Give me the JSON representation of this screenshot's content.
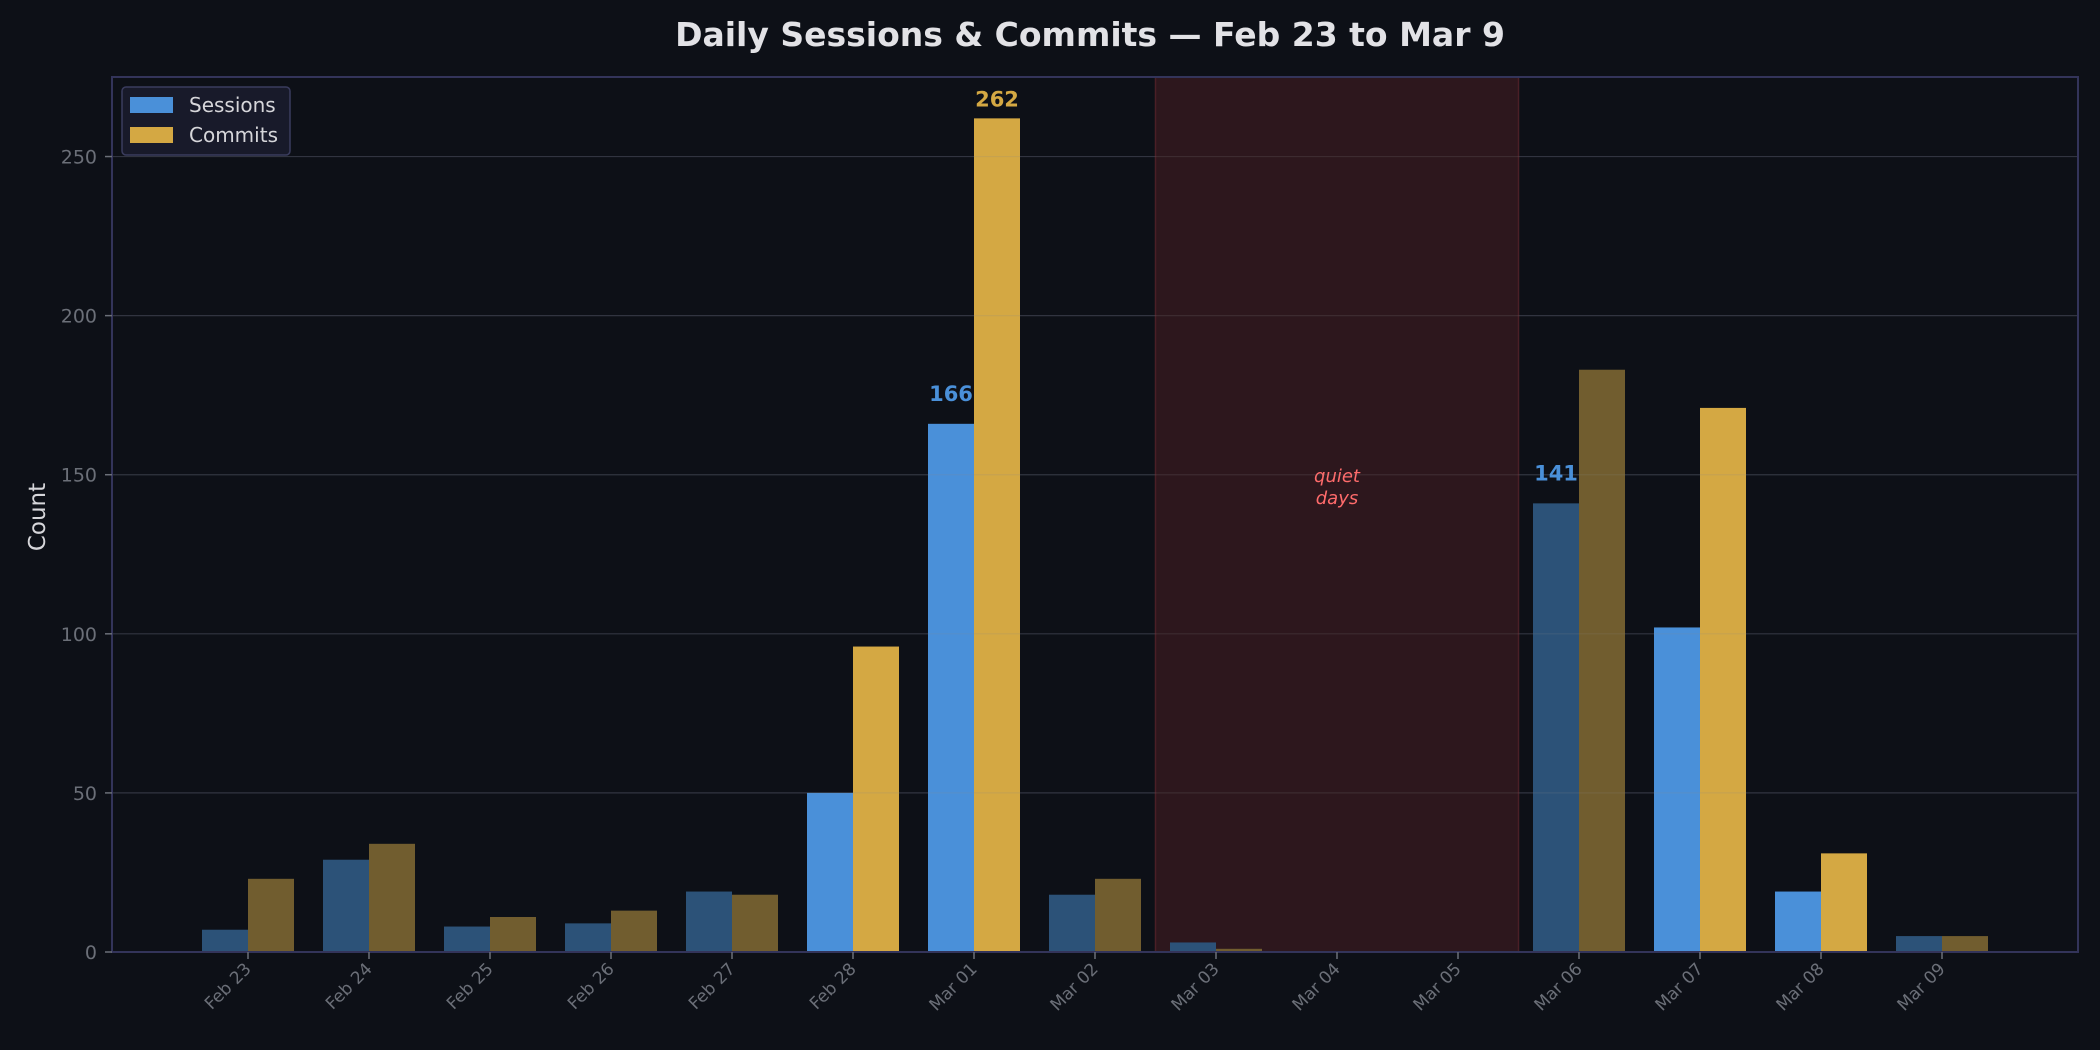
{
  "colors": {
    "background": "#0d1017",
    "frame": "#33345a",
    "grid": "#1e2230",
    "sessions": "#4a90d9",
    "sessions_dim": "#2c5278",
    "commits": "#d4a843",
    "commits_dim": "#715d2f",
    "quiet_fill": "#2d171d",
    "quiet_edge": "#4a1f26",
    "quiet_text": "#ff6b6b",
    "legend_bg": "#181a2a"
  },
  "chart_data": {
    "type": "bar",
    "title": "Daily Sessions & Commits — Feb 23 to Mar 9",
    "xlabel": "",
    "ylabel": "Count",
    "ylim": [
      0,
      275
    ],
    "yticks": [
      0,
      50,
      100,
      150,
      200,
      250
    ],
    "grid": true,
    "legend_position": "upper left",
    "categories": [
      "Feb 23",
      "Feb 24",
      "Feb 25",
      "Feb 26",
      "Feb 27",
      "Feb 28",
      "Mar 01",
      "Mar 02",
      "Mar 03",
      "Mar 04",
      "Mar 05",
      "Mar 06",
      "Mar 07",
      "Mar 08",
      "Mar 09"
    ],
    "series": [
      {
        "name": "Sessions",
        "values": [
          7,
          29,
          8,
          9,
          19,
          50,
          166,
          18,
          3,
          0,
          0,
          141,
          102,
          19,
          5
        ]
      },
      {
        "name": "Commits",
        "values": [
          23,
          34,
          11,
          13,
          18,
          96,
          262,
          23,
          1,
          0,
          0,
          183,
          171,
          31,
          5
        ]
      }
    ],
    "highlighted_categories": [
      "Feb 28",
      "Mar 01",
      "Mar 07",
      "Mar 08"
    ],
    "value_labels": [
      {
        "category": "Mar 01",
        "series": "Sessions",
        "text": "166"
      },
      {
        "category": "Mar 01",
        "series": "Commits",
        "text": "262"
      },
      {
        "category": "Mar 06",
        "series": "Sessions",
        "text": "141"
      }
    ],
    "annotations": [
      {
        "type": "shaded_span",
        "from": "Mar 03",
        "to": "Mar 05",
        "text": "quiet\ndays"
      }
    ]
  }
}
